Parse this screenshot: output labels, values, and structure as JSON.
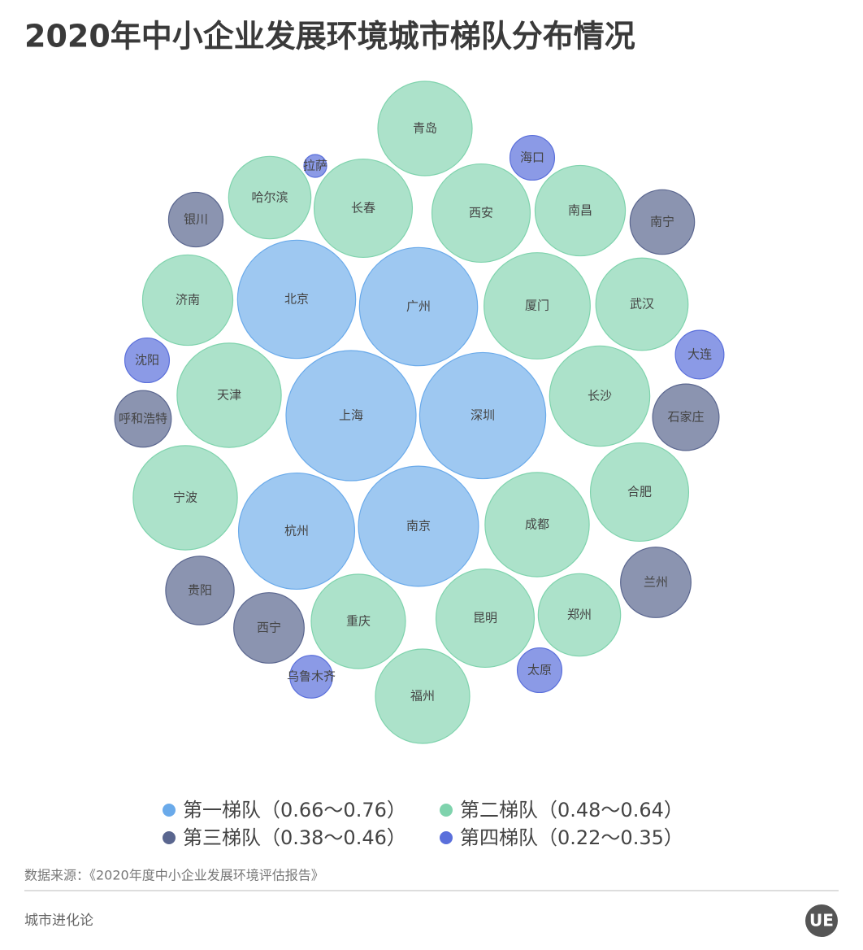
{
  "chart_data": {
    "type": "packed-bubble",
    "title": "2020年中小企业发展环境城市梯队分布情况",
    "series": [
      {
        "name": "第一梯队（0.66～0.76）",
        "color": "#6aaaea",
        "categories": [
          "北京",
          "广州",
          "上海",
          "深圳",
          "杭州",
          "南京"
        ],
        "values": [
          0.7,
          0.7,
          0.76,
          0.74,
          0.69,
          0.71
        ]
      },
      {
        "name": "第二梯队（0.48～0.64）",
        "color": "#7fd3ad",
        "categories": [
          "青岛",
          "哈尔滨",
          "长春",
          "西安",
          "南昌",
          "厦门",
          "济南",
          "武汉",
          "天津",
          "长沙",
          "宁波",
          "成都",
          "合肥",
          "重庆",
          "昆明",
          "郑州",
          "福州"
        ],
        "values": [
          0.58,
          0.52,
          0.6,
          0.6,
          0.56,
          0.64,
          0.56,
          0.57,
          0.63,
          0.61,
          0.63,
          0.63,
          0.6,
          0.58,
          0.6,
          0.52,
          0.58
        ]
      },
      {
        "name": "第三梯队（0.38～0.46）",
        "color": "#5a668f",
        "categories": [
          "银川",
          "南宁",
          "呼和浩特",
          "石家庄",
          "贵阳",
          "兰州",
          "西宁"
        ],
        "values": [
          0.38,
          0.43,
          0.39,
          0.44,
          0.45,
          0.46,
          0.46
        ]
      },
      {
        "name": "第四梯队（0.22～0.35）",
        "color": "#5a6fdb",
        "categories": [
          "拉萨",
          "海口",
          "沈阳",
          "大连",
          "乌鲁木齐",
          "太原"
        ],
        "values": [
          0.22,
          0.33,
          0.33,
          0.35,
          0.32,
          0.33
        ]
      }
    ]
  },
  "source": "数据来源：《2020年度中小企业发展环境评估报告》",
  "footer": "城市进化论",
  "logo": "UE"
}
